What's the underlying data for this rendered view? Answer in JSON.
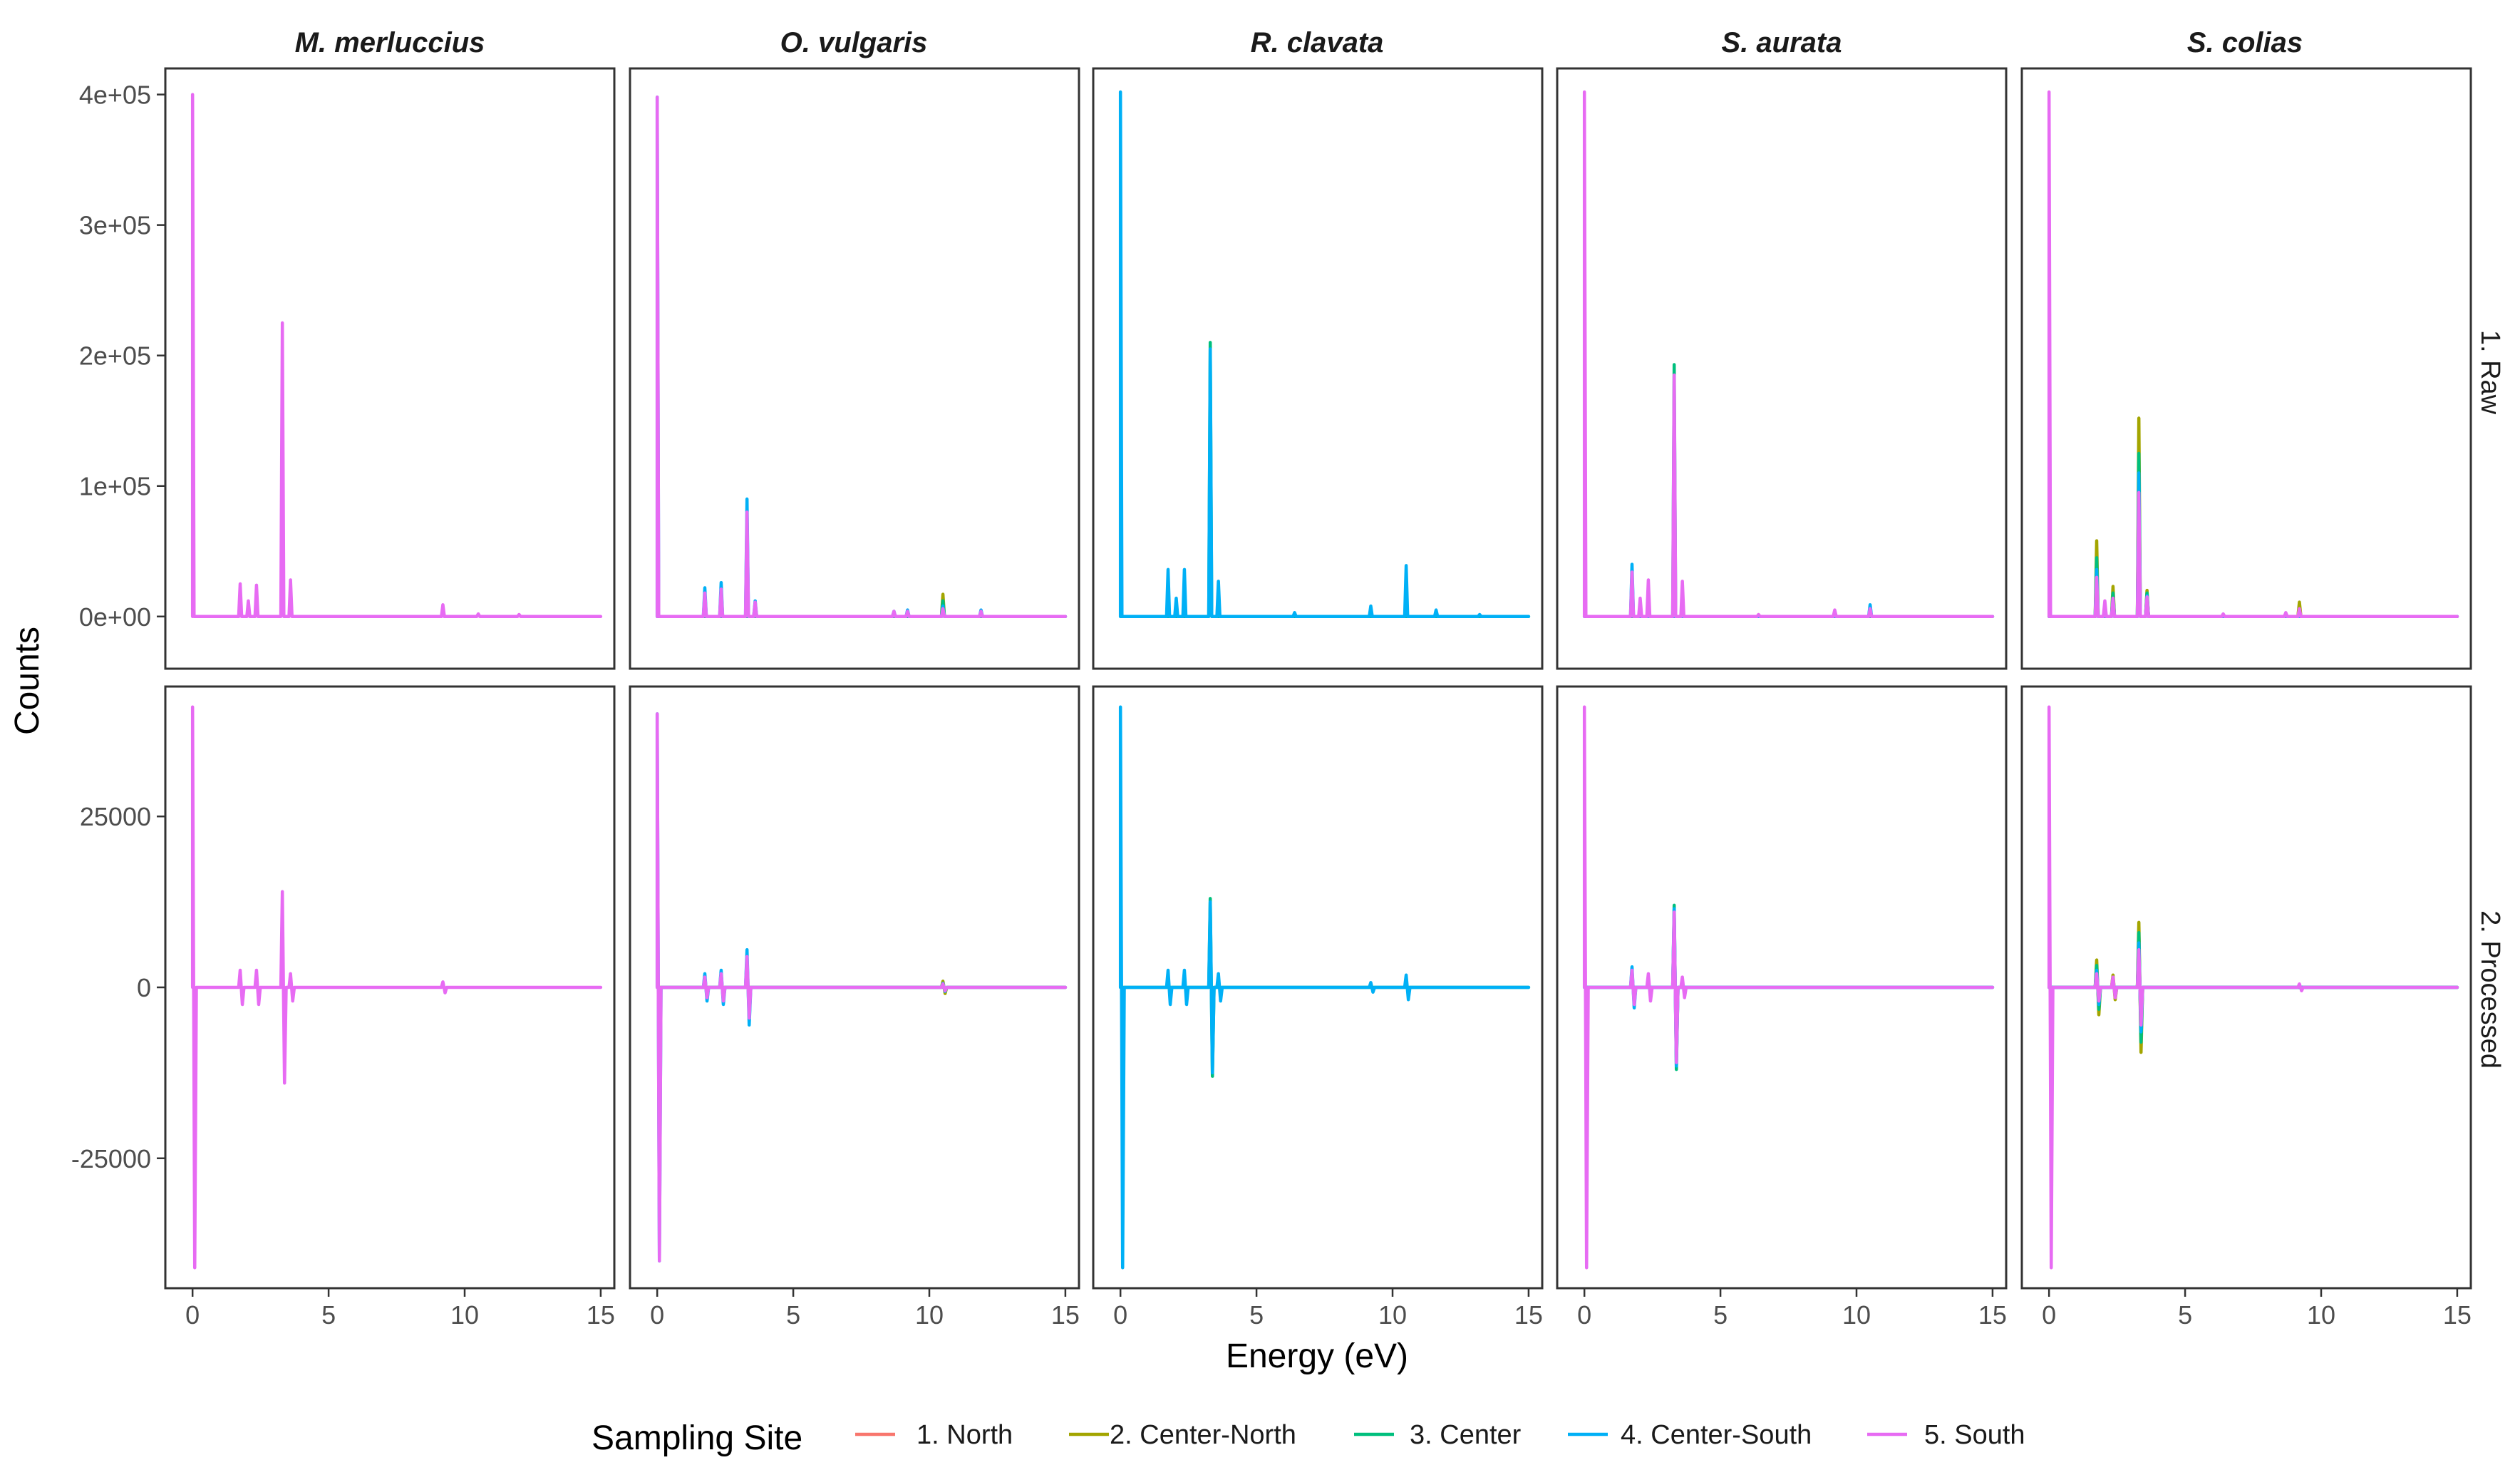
{
  "chart_data": {
    "type": "line",
    "xlabel": "Energy (eV)",
    "ylabel": "Counts",
    "xlim": [
      -1,
      15.5
    ],
    "x_ticks": [
      0,
      5,
      10,
      15
    ],
    "x_tick_labels": [
      "0",
      "5",
      "10",
      "15"
    ],
    "species": [
      "M. merluccius",
      "O. vulgaris",
      "R. clavata",
      "S. aurata",
      "S. colias"
    ],
    "rows": [
      {
        "label": "1. Raw",
        "ylim": [
          -40000,
          420000
        ],
        "y_ticks": [
          0,
          100000,
          200000,
          300000,
          400000
        ],
        "y_tick_labels": [
          "0e+00",
          "1e+05",
          "2e+05",
          "3e+05",
          "4e+05"
        ]
      },
      {
        "label": "2. Processed",
        "ylim": [
          -44000,
          44000
        ],
        "y_ticks": [
          -25000,
          0,
          25000
        ],
        "y_tick_labels": [
          "-25000",
          "0",
          "25000"
        ]
      }
    ],
    "legend": {
      "title": "Sampling Site",
      "position": "bottom",
      "entries": [
        {
          "label": "1. North",
          "color": "#F8766D"
        },
        {
          "label": "2. Center-North",
          "color": "#A3A500"
        },
        {
          "label": "3. Center",
          "color": "#00BF7D"
        },
        {
          "label": "4. Center-South",
          "color": "#00B0F6"
        },
        {
          "label": "5. South",
          "color": "#E76BF3"
        }
      ]
    },
    "panels": {
      "raw": {
        "M. merluccius": [
          {
            "site": "5. South",
            "peaks": [
              [
                0,
                400000
              ],
              [
                1.75,
                25000
              ],
              [
                2.05,
                12000
              ],
              [
                2.35,
                24000
              ],
              [
                3.3,
                225000
              ],
              [
                3.6,
                28000
              ],
              [
                9.2,
                9000
              ],
              [
                10.5,
                2000
              ],
              [
                12,
                1500
              ]
            ]
          }
        ],
        "O. vulgaris": [
          {
            "site": "2. Center-North",
            "peaks": [
              [
                10.5,
                17000
              ]
            ]
          },
          {
            "site": "3. Center",
            "peaks": [
              [
                10.5,
                12000
              ]
            ]
          },
          {
            "site": "4. Center-South",
            "peaks": [
              [
                0,
                398000
              ],
              [
                1.75,
                22000
              ],
              [
                2.35,
                26000
              ],
              [
                3.3,
                90000
              ],
              [
                3.6,
                12000
              ],
              [
                8.7,
                4000
              ],
              [
                9.2,
                5000
              ],
              [
                10.5,
                8000
              ],
              [
                11.9,
                5000
              ]
            ]
          },
          {
            "site": "5. South",
            "peaks": [
              [
                0,
                398000
              ],
              [
                1.75,
                18000
              ],
              [
                2.35,
                21000
              ],
              [
                3.3,
                80000
              ],
              [
                3.6,
                11000
              ],
              [
                8.7,
                4000
              ],
              [
                9.2,
                4000
              ],
              [
                10.5,
                6000
              ],
              [
                11.9,
                4000
              ]
            ]
          }
        ],
        "R. clavata": [
          {
            "site": "3. Center",
            "peaks": [
              [
                3.3,
                210000
              ]
            ]
          },
          {
            "site": "4. Center-South",
            "peaks": [
              [
                0,
                402000
              ],
              [
                1.75,
                36000
              ],
              [
                2.05,
                14000
              ],
              [
                2.35,
                36000
              ],
              [
                3.3,
                205000
              ],
              [
                3.6,
                27000
              ],
              [
                6.4,
                3000
              ],
              [
                9.2,
                8000
              ],
              [
                10.5,
                39000
              ],
              [
                11.6,
                5000
              ],
              [
                13.2,
                1500
              ]
            ]
          }
        ],
        "S. aurata": [
          {
            "site": "3. Center",
            "peaks": [
              [
                3.3,
                193000
              ]
            ]
          },
          {
            "site": "4. Center-South",
            "peaks": [
              [
                1.75,
                40000
              ],
              [
                10.5,
                9000
              ]
            ]
          },
          {
            "site": "5. South",
            "peaks": [
              [
                0,
                402000
              ],
              [
                1.75,
                34000
              ],
              [
                2.05,
                14000
              ],
              [
                2.35,
                28000
              ],
              [
                3.3,
                185000
              ],
              [
                3.6,
                27000
              ],
              [
                6.4,
                1500
              ],
              [
                9.2,
                5000
              ],
              [
                10.5,
                6000
              ]
            ]
          }
        ],
        "S. colias": [
          {
            "site": "2. Center-North",
            "peaks": [
              [
                1.75,
                58000
              ],
              [
                2.35,
                23000
              ],
              [
                3.3,
                152000
              ],
              [
                3.6,
                20000
              ],
              [
                9.2,
                11000
              ]
            ]
          },
          {
            "site": "3. Center",
            "peaks": [
              [
                1.75,
                45000
              ],
              [
                2.35,
                18000
              ],
              [
                3.3,
                125000
              ],
              [
                3.6,
                18000
              ]
            ]
          },
          {
            "site": "4. Center-South",
            "peaks": [
              [
                1.75,
                36000
              ],
              [
                2.35,
                14000
              ],
              [
                3.3,
                110000
              ],
              [
                3.6,
                16000
              ]
            ]
          },
          {
            "site": "5. South",
            "peaks": [
              [
                0,
                402000
              ],
              [
                1.75,
                30000
              ],
              [
                2.05,
                12000
              ],
              [
                2.35,
                14000
              ],
              [
                3.3,
                95000
              ],
              [
                3.6,
                15000
              ],
              [
                6.4,
                2000
              ],
              [
                8.7,
                3000
              ],
              [
                9.2,
                6000
              ]
            ]
          }
        ]
      },
      "processed": {
        "M. merluccius": [
          {
            "site": "5. South",
            "peaks": [
              [
                0,
                41000
              ],
              [
                1.75,
                2500
              ],
              [
                2.35,
                2500
              ],
              [
                3.3,
                14000
              ],
              [
                3.6,
                2000
              ],
              [
                9.2,
                800
              ]
            ]
          }
        ],
        "O. vulgaris": [
          {
            "site": "2. Center-North",
            "peaks": [
              [
                10.5,
                900
              ]
            ]
          },
          {
            "site": "4. Center-South",
            "peaks": [
              [
                0,
                40000
              ],
              [
                1.75,
                2000
              ],
              [
                2.35,
                2500
              ],
              [
                3.3,
                5500
              ],
              [
                10.5,
                600
              ]
            ]
          },
          {
            "site": "5. South",
            "peaks": [
              [
                0,
                40000
              ],
              [
                1.75,
                1500
              ],
              [
                2.35,
                2000
              ],
              [
                3.3,
                4500
              ],
              [
                10.5,
                500
              ]
            ]
          }
        ],
        "R. clavata": [
          {
            "site": "3. Center",
            "peaks": [
              [
                3.3,
                13000
              ]
            ]
          },
          {
            "site": "4. Center-South",
            "peaks": [
              [
                0,
                41000
              ],
              [
                1.75,
                2500
              ],
              [
                2.35,
                2500
              ],
              [
                3.3,
                12500
              ],
              [
                3.6,
                2000
              ],
              [
                9.2,
                700
              ],
              [
                10.5,
                1800
              ]
            ]
          }
        ],
        "S. aurata": [
          {
            "site": "3. Center",
            "peaks": [
              [
                3.3,
                12000
              ]
            ]
          },
          {
            "site": "4. Center-South",
            "peaks": [
              [
                1.75,
                3000
              ],
              [
                3.3,
                11500
              ]
            ]
          },
          {
            "site": "5. South",
            "peaks": [
              [
                0,
                41000
              ],
              [
                1.75,
                2500
              ],
              [
                2.35,
                2000
              ],
              [
                3.3,
                11000
              ],
              [
                3.6,
                1500
              ]
            ]
          }
        ],
        "S. colias": [
          {
            "site": "2. Center-North",
            "peaks": [
              [
                1.75,
                4000
              ],
              [
                2.35,
                1800
              ],
              [
                3.3,
                9500
              ]
            ]
          },
          {
            "site": "3. Center",
            "peaks": [
              [
                1.75,
                3200
              ],
              [
                3.3,
                8000
              ]
            ]
          },
          {
            "site": "4. Center-South",
            "peaks": [
              [
                1.75,
                2500
              ],
              [
                3.3,
                6500
              ]
            ]
          },
          {
            "site": "5. South",
            "peaks": [
              [
                0,
                41000
              ],
              [
                1.75,
                2000
              ],
              [
                2.35,
                1500
              ],
              [
                3.3,
                5500
              ],
              [
                9.2,
                500
              ]
            ]
          }
        ]
      }
    }
  }
}
